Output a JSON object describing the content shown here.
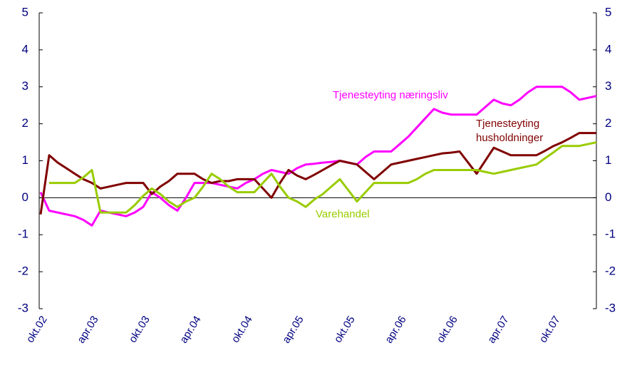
{
  "chart_data": {
    "type": "line",
    "categories": [
      "okt.02",
      null,
      null,
      null,
      null,
      null,
      "apr.03",
      null,
      null,
      null,
      null,
      null,
      "okt.03",
      null,
      null,
      null,
      null,
      null,
      "apr.04",
      null,
      null,
      null,
      null,
      null,
      "okt.04",
      null,
      null,
      null,
      null,
      null,
      "apr.05",
      null,
      null,
      null,
      null,
      null,
      "okt.05",
      null,
      null,
      null,
      null,
      null,
      "apr.06",
      null,
      null,
      null,
      null,
      null,
      "okt.06",
      null,
      null,
      null,
      null,
      null,
      "apr.07",
      null,
      null,
      null,
      null,
      null,
      "okt.07",
      null,
      null,
      null,
      null,
      null
    ],
    "series": [
      {
        "name": "Tjenesteyting næringsliv",
        "color": "#ff00ff",
        "values": [
          0.15,
          -0.35,
          -0.4,
          -0.45,
          -0.5,
          -0.6,
          -0.75,
          -0.35,
          -0.4,
          -0.45,
          -0.5,
          -0.4,
          -0.25,
          0.15,
          0,
          -0.2,
          -0.35,
          0.0,
          0.4,
          0.4,
          0.4,
          0.35,
          0.3,
          0.25,
          0.4,
          0.5,
          0.65,
          0.75,
          0.7,
          0.65,
          0.8,
          0.9,
          0.92,
          0.95,
          0.97,
          1.0,
          0.95,
          0.9,
          1.1,
          1.25,
          1.25,
          1.25,
          1.45,
          1.65,
          1.9,
          2.15,
          2.4,
          2.3,
          2.25,
          2.25,
          2.25,
          2.25,
          2.45,
          2.65,
          2.55,
          2.5,
          2.65,
          2.85,
          3.0,
          3.0,
          3.0,
          3.0,
          2.85,
          2.65,
          2.7,
          2.75
        ]
      },
      {
        "name": "Tjenesteyting husholdninger",
        "color": "#800000",
        "values": [
          -0.45,
          1.15,
          0.95,
          0.8,
          0.65,
          0.5,
          0.4,
          0.25,
          0.3,
          0.35,
          0.4,
          0.4,
          0.4,
          0.1,
          0.3,
          0.45,
          0.65,
          0.65,
          0.65,
          0.5,
          0.4,
          0.45,
          0.45,
          0.5,
          0.5,
          0.5,
          0.25,
          0.0,
          0.4,
          0.75,
          0.6,
          0.5,
          0.62,
          0.75,
          0.88,
          1.0,
          0.95,
          0.9,
          0.7,
          0.5,
          0.7,
          0.9,
          0.95,
          1.0,
          1.05,
          1.1,
          1.15,
          1.2,
          1.22,
          1.25,
          0.95,
          0.65,
          1.0,
          1.35,
          1.25,
          1.15,
          1.15,
          1.15,
          1.15,
          1.27,
          1.4,
          1.5,
          1.62,
          1.75,
          1.75,
          1.75
        ]
      },
      {
        "name": "Varehandel",
        "color": "#99cc00",
        "values": [
          null,
          0.4,
          0.4,
          0.4,
          0.4,
          0.55,
          0.75,
          -0.4,
          -0.4,
          -0.4,
          -0.4,
          -0.2,
          0.05,
          0.25,
          0.1,
          -0.1,
          -0.25,
          -0.1,
          0.0,
          0.3,
          0.65,
          0.5,
          0.3,
          0.15,
          0.15,
          0.15,
          0.4,
          0.65,
          0.3,
          0.0,
          -0.1,
          -0.25,
          -0.05,
          0.1,
          0.3,
          0.5,
          0.2,
          -0.1,
          0.15,
          0.4,
          0.4,
          0.4,
          0.4,
          0.4,
          0.5,
          0.65,
          0.75,
          0.75,
          0.75,
          0.75,
          0.75,
          0.75,
          0.7,
          0.65,
          0.7,
          0.75,
          0.8,
          0.85,
          0.9,
          1.07,
          1.23,
          1.4,
          1.4,
          1.4,
          1.45,
          1.5
        ]
      }
    ],
    "ylim": [
      -3,
      5
    ],
    "yticks": [
      -3,
      -2,
      -1,
      0,
      1,
      2,
      3,
      4,
      5
    ],
    "y2lim": [
      -3,
      5
    ],
    "y2ticks": [
      -3,
      -2,
      -1,
      0,
      1,
      2,
      3,
      4,
      5
    ]
  }
}
